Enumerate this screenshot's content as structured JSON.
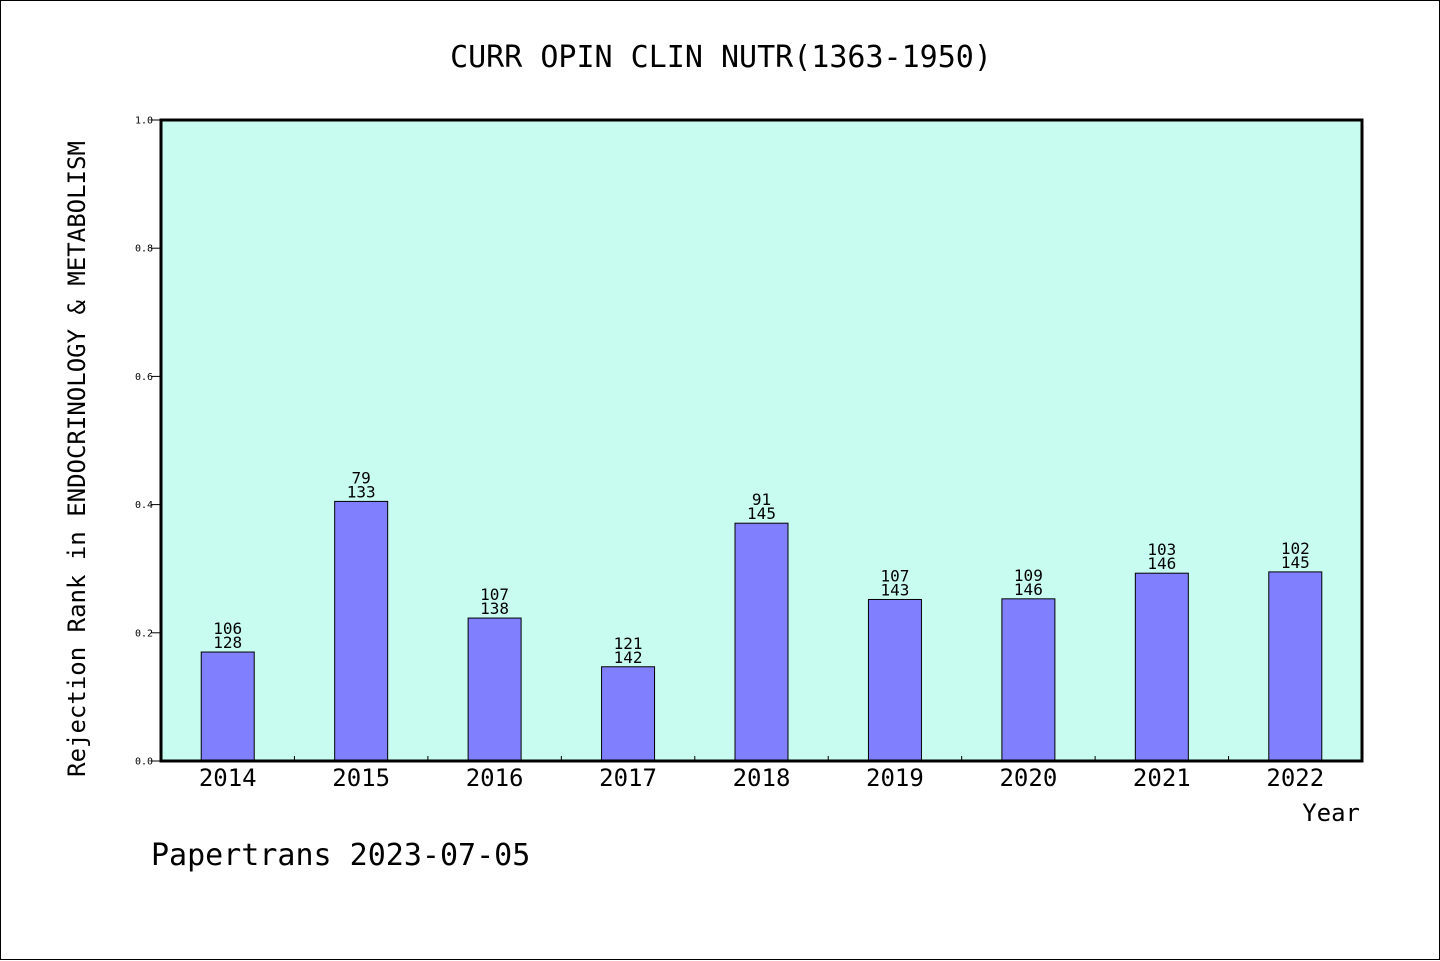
{
  "chart_data": {
    "type": "bar",
    "title": "CURR OPIN CLIN NUTR(1363-1950)",
    "xlabel": "Year",
    "ylabel": "Rejection Rank in ENDOCRINOLOGY & METABOLISM",
    "ylim": [
      0,
      1.0
    ],
    "yticks": [
      "0.0",
      "0.2",
      "0.4",
      "0.6",
      "0.8",
      "1.0"
    ],
    "grid": false,
    "categories": [
      "2014",
      "2015",
      "2016",
      "2017",
      "2018",
      "2019",
      "2020",
      "2021",
      "2022"
    ],
    "values": [
      0.17,
      0.405,
      0.223,
      0.147,
      0.371,
      0.252,
      0.253,
      0.293,
      0.295
    ],
    "annotations": [
      {
        "top": "106",
        "bottom": "128"
      },
      {
        "top": "79",
        "bottom": "133"
      },
      {
        "top": "107",
        "bottom": "138"
      },
      {
        "top": "121",
        "bottom": "142"
      },
      {
        "top": "91",
        "bottom": "145"
      },
      {
        "top": "107",
        "bottom": "143"
      },
      {
        "top": "109",
        "bottom": "146"
      },
      {
        "top": "103",
        "bottom": "146"
      },
      {
        "top": "102",
        "bottom": "145"
      }
    ],
    "colors": {
      "plot_background": "#c8fcf0",
      "bar_fill": "#8080ff",
      "bar_stroke": "#000000"
    }
  },
  "footer": "Papertrans 2023-07-05"
}
